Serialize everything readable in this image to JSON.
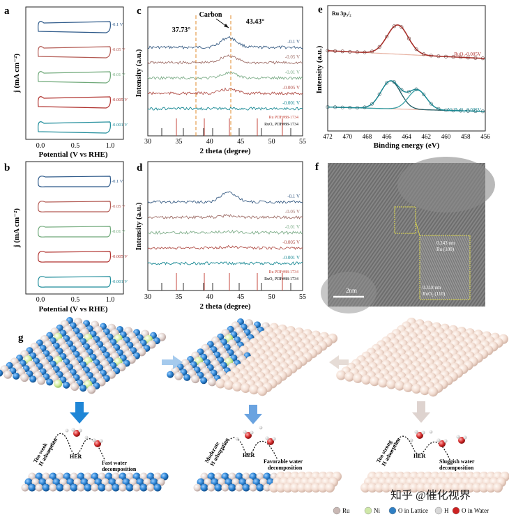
{
  "panels": {
    "a": {
      "letter": "a",
      "ylabel": "j (mA cm⁻²)",
      "xlabel": "Potential (V vs RHE)",
      "xticks": [
        "0.0",
        "0.5",
        "1.0"
      ],
      "curves": [
        {
          "label": "-0.1 V",
          "color": "#2e5a8a"
        },
        {
          "label": "-0.05 V",
          "color": "#b35a53"
        },
        {
          "label": "-0.01 V",
          "color": "#6ea878"
        },
        {
          "label": "-0.005 V",
          "color": "#b0322e"
        },
        {
          "label": "-0.001 V",
          "color": "#1e8c9a"
        }
      ]
    },
    "b": {
      "letter": "b",
      "ylabel": "j (mA cm⁻²)",
      "xlabel": "Potential (V vs RHE)",
      "xticks": [
        "0.0",
        "0.5",
        "1.0"
      ],
      "curves": [
        {
          "label": "-0.1 V",
          "color": "#2e5a8a"
        },
        {
          "label": "-0.05 V",
          "color": "#b35a53"
        },
        {
          "label": "-0.01 V",
          "color": "#6ea878"
        },
        {
          "label": "-0.005 V",
          "color": "#b0322e"
        },
        {
          "label": "-0.001 V",
          "color": "#1e8c9a"
        }
      ]
    },
    "c": {
      "letter": "c",
      "ylabel": "Intensity (a.u.)",
      "xlabel": "2 theta (degree)",
      "xticks": [
        "30",
        "35",
        "40",
        "45",
        "50",
        "55"
      ],
      "annot_carbon": "Carbon",
      "annot_left": "37.73°",
      "annot_right": "43.43°",
      "ref1": "Ru PDF#88-1734",
      "ref2": "RuO₂ PDF#88-1734",
      "curves": [
        {
          "label": "-0.1 V",
          "color": "#3b5f86"
        },
        {
          "label": "-0.05 V",
          "color": "#a0706a"
        },
        {
          "label": "-0.01 V",
          "color": "#7fae8a"
        },
        {
          "label": "-0.005 V",
          "color": "#b2514a"
        },
        {
          "label": "-0.001 V",
          "color": "#1b8a95"
        }
      ]
    },
    "d": {
      "letter": "d",
      "ylabel": "Intensity (a.u.)",
      "xlabel": "2 theta (degree)",
      "xticks": [
        "30",
        "35",
        "40",
        "45",
        "50",
        "55"
      ],
      "ref1": "Ru PDF#88-1734",
      "ref2": "RuO₂ PDF#88-1734",
      "curves": [
        {
          "label": "-0.1 V",
          "color": "#3b5f86"
        },
        {
          "label": "-0.05 V",
          "color": "#a0706a"
        },
        {
          "label": "-0.01 V",
          "color": "#7fae8a"
        },
        {
          "label": "-0.005 V",
          "color": "#b2514a"
        },
        {
          "label": "-0.001 V",
          "color": "#1b8a95"
        }
      ]
    },
    "e": {
      "letter": "e",
      "title": "Ru 3p₃/₂",
      "ylabel": "Intensity (a.u.)",
      "xlabel": "Binding energy (eV)",
      "xticks": [
        "472",
        "470",
        "468",
        "466",
        "464",
        "462",
        "460",
        "458",
        "456"
      ],
      "upper_label": "RuO₂-0.005V",
      "lower_label": "Ni-RuO₂-0.005V"
    },
    "f": {
      "letter": "f",
      "scale_bar": "2nm",
      "lattice1_d": "0.243 nm",
      "lattice1_plane": "Ru (100)",
      "lattice2_d": "0.318 nm",
      "lattice2_plane": "RuO₂ (110)"
    },
    "g": {
      "letter": "g",
      "mech1_left": "Too week",
      "mech1_left2": "H adsorption",
      "mech1_right": "Fast water",
      "mech1_right2": "decomposition",
      "mech2_left": "Moderate",
      "mech2_left2": "H adsorption",
      "mech2_right": "Favorable water",
      "mech2_right2": "decomposition",
      "mech3_left": "Too strong",
      "mech3_left2": "H adsorption",
      "mech3_right": "Sluggish water",
      "mech3_right2": "decomposition",
      "her": "HER",
      "legend": [
        "Ru",
        "Ni",
        "O in Lattice",
        "H",
        "O in Water"
      ],
      "legend_colors": [
        "#c9b8b4",
        "#cfe8a8",
        "#2f7fc4",
        "#d8d8d8",
        "#cc2222"
      ]
    }
  },
  "watermark": "知乎 @催化视界"
}
